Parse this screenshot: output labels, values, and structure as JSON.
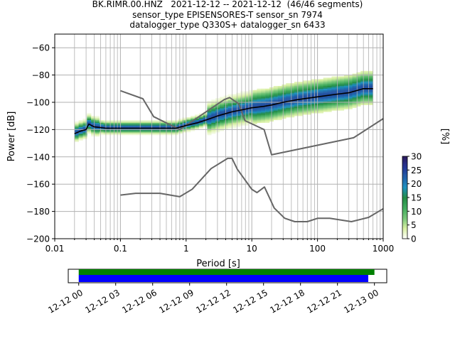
{
  "title_lines": [
    "BK.RIMR.00.HNZ   2021-12-12 -- 2021-12-12  (46/46 segments)",
    "sensor_type EPISENSORES-T sensor_sn 7974",
    "datalogger_type Q330S+ datalogger_sn 6433"
  ],
  "chart_data": {
    "type": "heatmap",
    "xlabel": "Period [s]",
    "ylabel": "Power [dB]",
    "xscale": "log",
    "xlim": [
      0.01,
      1000
    ],
    "ylim": [
      -200,
      -50
    ],
    "xticks": [
      0.01,
      0.1,
      1,
      10,
      100,
      1000
    ],
    "xtick_labels": [
      "0.01",
      "0.1",
      "1",
      "10",
      "100",
      "1000"
    ],
    "yticks": [
      -200,
      -180,
      -160,
      -140,
      -120,
      -100,
      -80,
      -60
    ],
    "ytick_labels": [
      "−200",
      "−180",
      "−160",
      "−140",
      "−120",
      "−100",
      "−80",
      "−60"
    ],
    "grid": true,
    "colorbar": {
      "label": "[%]",
      "range": [
        0,
        30
      ],
      "ticks": [
        0,
        5,
        10,
        15,
        20,
        25,
        30
      ],
      "tick_labels": [
        "0",
        "5",
        "10",
        "15",
        "20",
        "25",
        "30"
      ],
      "colormap": [
        "#ffffff",
        "#d9f0a3",
        "#78c679",
        "#41ab5d",
        "#238b45",
        "#1d91c0",
        "#225ea8",
        "#253494",
        "#2c1a5c"
      ]
    },
    "mode_curve": {
      "color": "#000000",
      "x": [
        0.02,
        0.025,
        0.03,
        0.033,
        0.04,
        0.06,
        0.1,
        0.2,
        0.4,
        0.7,
        1.0,
        1.5,
        2,
        3,
        5,
        8,
        10,
        15,
        20,
        30,
        50,
        100,
        200,
        300,
        500,
        700
      ],
      "y": [
        -123,
        -121,
        -120,
        -116,
        -118,
        -119,
        -119,
        -119,
        -119,
        -119,
        -117,
        -115,
        -113,
        -110,
        -107,
        -105,
        -104,
        -103,
        -102,
        -100,
        -98,
        -96,
        -94,
        -93,
        -90,
        -90
      ]
    },
    "noise_model_high": {
      "color": "#666666",
      "x": [
        0.1,
        0.22,
        0.32,
        0.8,
        3.8,
        4.6,
        6.3,
        7.9,
        15.4,
        20,
        354.8,
        1000
      ],
      "y": [
        -91.5,
        -97.4,
        -110.5,
        -120,
        -98,
        -96.5,
        -101,
        -113.5,
        -120,
        -138.5,
        -126,
        -112
      ]
    },
    "noise_model_low": {
      "color": "#666666",
      "x": [
        0.1,
        0.17,
        0.4,
        0.8,
        1.24,
        2.4,
        4.3,
        5.0,
        6.0,
        10.0,
        12.0,
        15.6,
        21.9,
        31.6,
        45.0,
        70.0,
        101.0,
        154.0,
        328.0,
        600.0,
        1000.0
      ],
      "y": [
        -168,
        -166.7,
        -166.7,
        -169.2,
        -163.7,
        -148.6,
        -141.1,
        -141.1,
        -149,
        -163.8,
        -166.2,
        -162.1,
        -177.5,
        -185,
        -187.5,
        -187.5,
        -185,
        -185,
        -187.5,
        -184.4,
        -178
      ]
    },
    "coverage": {
      "tick_labels": [
        "12-12 00",
        "12-12 03",
        "12-12 06",
        "12-12 09",
        "12-12 12",
        "12-12 15",
        "12-12 18",
        "12-12 21",
        "12-13 00"
      ],
      "range_hours": [
        -0.85,
        25.0
      ],
      "available_data_hours": [
        0.0,
        24.0
      ],
      "processed_psd_hours": [
        0.0,
        23.5
      ],
      "available_color": "#008000",
      "processed_color": "#0000ff"
    }
  }
}
